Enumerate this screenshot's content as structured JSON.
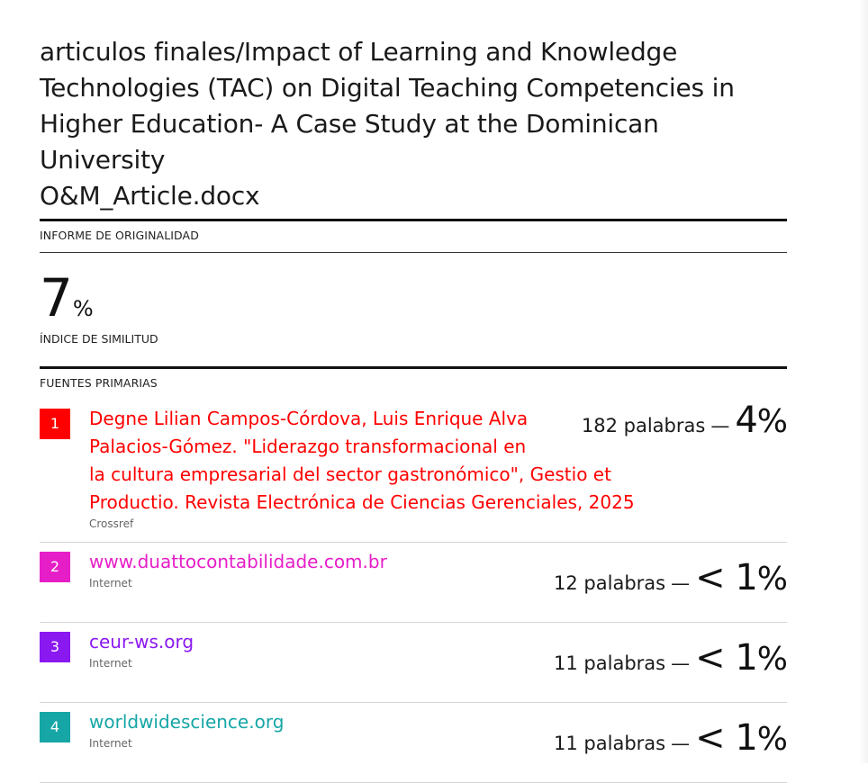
{
  "document": {
    "title_lines": [
      "articulos finales/Impact of Learning and Knowledge",
      "Technologies (TAC) on Digital Teaching Competencies in",
      "Higher Education- A Case Study at the Dominican University",
      "O&M_Article.docx"
    ]
  },
  "originality": {
    "section_label": "INFORME DE ORIGINALIDAD",
    "similarity_value": "7",
    "similarity_unit": "%",
    "similarity_label": "ÍNDICE DE SIMILITUD"
  },
  "sources": {
    "section_label": "FUENTES PRIMARIAS",
    "items": [
      {
        "rank": "1",
        "color": "#ff0000",
        "name_lines": [
          "Degne Lilian Campos-Córdova, Luis Enrique Alva",
          "Palacios-Gómez. \"Liderazgo transformacional en",
          "la cultura empresarial del sector gastronómico\", Gestio et",
          "Productio. Revista Electrónica de Ciencias Gerenciales, 2025"
        ],
        "type": "Crossref",
        "words": "182 palabras",
        "dash": "—",
        "percent": "4",
        "percent_sign": "%"
      },
      {
        "rank": "2",
        "color": "#e61ec8",
        "name_lines": [
          "www.duattocontabilidade.com.br"
        ],
        "type": "Internet",
        "words": "12 palabras",
        "dash": "—",
        "percent": "< 1",
        "percent_sign": "%"
      },
      {
        "rank": "3",
        "color": "#8a18f0",
        "name_lines": [
          "ceur-ws.org"
        ],
        "type": "Internet",
        "words": "11 palabras",
        "dash": "—",
        "percent": "< 1",
        "percent_sign": "%"
      },
      {
        "rank": "4",
        "color": "#16a6a6",
        "name_lines": [
          "worldwidescience.org"
        ],
        "type": "Internet",
        "words": "11 palabras",
        "dash": "—",
        "percent": "< 1",
        "percent_sign": "%"
      }
    ]
  }
}
